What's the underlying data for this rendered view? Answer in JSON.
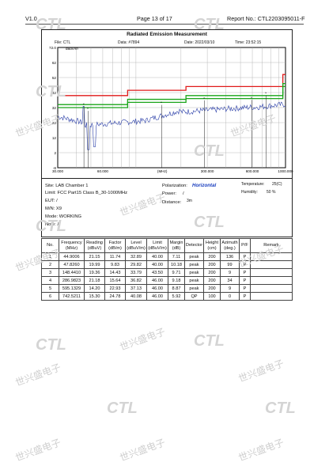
{
  "header": {
    "version": "V1.0",
    "page": "Page 13 of 17",
    "report": "Report No.: CTL2203095011-F"
  },
  "chart": {
    "title": "Radiated Emission Measurement",
    "file": "File: CTL",
    "data_no": "Data: #7894",
    "date": "Date: 2022/03/10",
    "time": "Time: 23:52:15",
    "unit": "dBuV/m",
    "y_ticks": [
      "72.0",
      "62",
      "52",
      "42",
      "32",
      "22",
      "12",
      "2",
      "-8"
    ],
    "x_ticks": [
      "30.000",
      "60.000",
      "(MHz)",
      "300.000",
      "600.000",
      "1000.000"
    ],
    "x_tick_mhz": [
      30,
      60,
      150,
      300,
      600,
      1000
    ],
    "ylim": [
      -8,
      72
    ],
    "limit_segments": [
      {
        "f1": 30,
        "f2": 88,
        "limit": 40
      },
      {
        "f1": 88,
        "f2": 216,
        "limit": 43.5
      },
      {
        "f1": 216,
        "f2": 960,
        "limit": 46
      },
      {
        "f1": 960,
        "f2": 1000,
        "limit": 54
      }
    ],
    "marks_mhz": [
      44.9006,
      47.826,
      148.441,
      286.9823,
      595.1329,
      742.5211
    ],
    "colors": {
      "limit": "#e01a1a",
      "margin_line": "#1aa51a",
      "trace": "#2b3fa8"
    }
  },
  "info": {
    "site": "Site: LAB Chamber 1",
    "limit": "Limit: FCC Part15 Class B_30-1000MHz",
    "eut": "EUT: /",
    "mn": "M/N: X9",
    "mode": "Mode: WORKING",
    "note": "Note: /",
    "polarization_label": "Polarization:",
    "polarization_value": "Horizontal",
    "power_label": "Power:",
    "power_value": "/",
    "distance_label": "Distance:",
    "distance_value": "3m",
    "temperature_label": "Temperature:",
    "temperature_value": "25(C)",
    "humidity_label": "Humidity:",
    "humidity_value": "50 %"
  },
  "table": {
    "headers": [
      "No.",
      "Frequency (MHz)",
      "Reading (dBuV)",
      "Factor (dB/m)",
      "Level (dBuV/m)",
      "Limit (dBuV/m)",
      "Margin (dB)",
      "Detector",
      "Height (cm)",
      "Azimuth (deg.)",
      "P/F",
      "Remark"
    ],
    "rows": [
      [
        "1",
        "44.9006",
        "21.15",
        "11.74",
        "32.89",
        "40.00",
        "7.11",
        "peak",
        "200",
        "136",
        "P",
        ""
      ],
      [
        "2",
        "47.8260",
        "19.99",
        "9.83",
        "29.82",
        "40.00",
        "10.18",
        "peak",
        "200",
        "99",
        "P",
        ""
      ],
      [
        "3",
        "148.4410",
        "19.36",
        "14.43",
        "33.79",
        "43.50",
        "9.71",
        "peak",
        "200",
        "9",
        "P",
        ""
      ],
      [
        "4",
        "286.9823",
        "21.18",
        "15.64",
        "36.82",
        "46.00",
        "9.18",
        "peak",
        "200",
        "34",
        "P",
        ""
      ],
      [
        "5",
        "595.1329",
        "14.20",
        "22.93",
        "37.13",
        "46.00",
        "8.87",
        "peak",
        "200",
        "9",
        "P",
        ""
      ],
      [
        "6",
        "742.5211",
        "15.30",
        "24.78",
        "40.08",
        "46.00",
        "5.92",
        "QP",
        "100",
        "0",
        "P",
        ""
      ]
    ]
  },
  "watermark": {
    "text": "世兴盛电子",
    "logo": "CTL"
  }
}
